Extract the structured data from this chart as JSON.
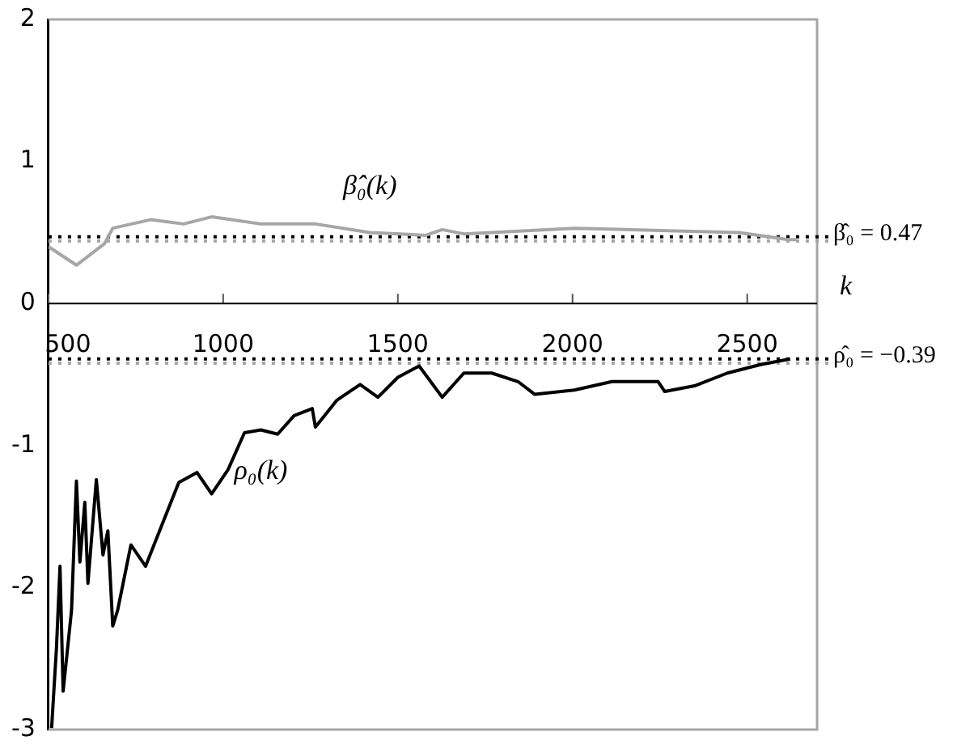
{
  "chart_data": {
    "type": "line",
    "xlabel": "k",
    "xlim": [
      500,
      2700
    ],
    "xticks": [
      500,
      1000,
      1500,
      2000,
      2500
    ],
    "ylim": [
      -3,
      2
    ],
    "yticks": [
      -3,
      -2,
      -1,
      0,
      1,
      2
    ],
    "grid": false,
    "legend": false,
    "marker": "none",
    "line_style": "solid",
    "series": [
      {
        "name": "β̂₀(k)",
        "color": "#a6a6a6",
        "x": [
          500,
          580,
          660,
          684,
          792,
          887,
          967,
          1108,
          1264,
          1420,
          1580,
          1627,
          1689,
          2005,
          2316,
          2476,
          2618,
          2640
        ],
        "values": [
          0.4,
          0.27,
          0.42,
          0.53,
          0.59,
          0.56,
          0.61,
          0.56,
          0.56,
          0.5,
          0.48,
          0.52,
          0.49,
          0.53,
          0.51,
          0.5,
          0.45,
          0.45
        ]
      },
      {
        "name": "ρ₀(k)",
        "color": "#000000",
        "x": [
          509,
          523,
          533,
          542,
          566,
          580,
          590,
          604,
          613,
          637,
          656,
          670,
          684,
          698,
          736,
          778,
          802,
          873,
          925,
          967,
          1014,
          1061,
          1108,
          1156,
          1203,
          1255,
          1264,
          1326,
          1392,
          1443,
          1500,
          1561,
          1627,
          1689,
          1769,
          1844,
          1892,
          2005,
          2113,
          2245,
          2264,
          2349,
          2443,
          2538,
          2623
        ],
        "values": [
          -2.99,
          -2.42,
          -1.85,
          -2.73,
          -2.16,
          -1.25,
          -1.82,
          -1.4,
          -1.97,
          -1.24,
          -1.77,
          -1.6,
          -2.27,
          -2.16,
          -1.7,
          -1.85,
          -1.7,
          -1.26,
          -1.19,
          -1.34,
          -1.17,
          -0.91,
          -0.89,
          -0.92,
          -0.79,
          -0.74,
          -0.87,
          -0.68,
          -0.57,
          -0.66,
          -0.52,
          -0.44,
          -0.66,
          -0.49,
          -0.49,
          -0.55,
          -0.64,
          -0.61,
          -0.55,
          -0.55,
          -0.62,
          -0.58,
          -0.49,
          -0.43,
          -0.39
        ]
      }
    ],
    "ref_lines": [
      {
        "axis": "y",
        "value": 0.47,
        "label": "β̂₀ = 0.47",
        "color": "#000000",
        "line_style": "dotted"
      },
      {
        "axis": "y",
        "value": 0.44,
        "color": "#a6a6a6",
        "line_style": "dotted"
      },
      {
        "axis": "y",
        "value": -0.39,
        "label": "ρ̂₀ = −0.39",
        "color": "#000000",
        "line_style": "dotted"
      },
      {
        "axis": "y",
        "value": -0.42,
        "color": "#a6a6a6",
        "line_style": "dotted"
      }
    ]
  }
}
